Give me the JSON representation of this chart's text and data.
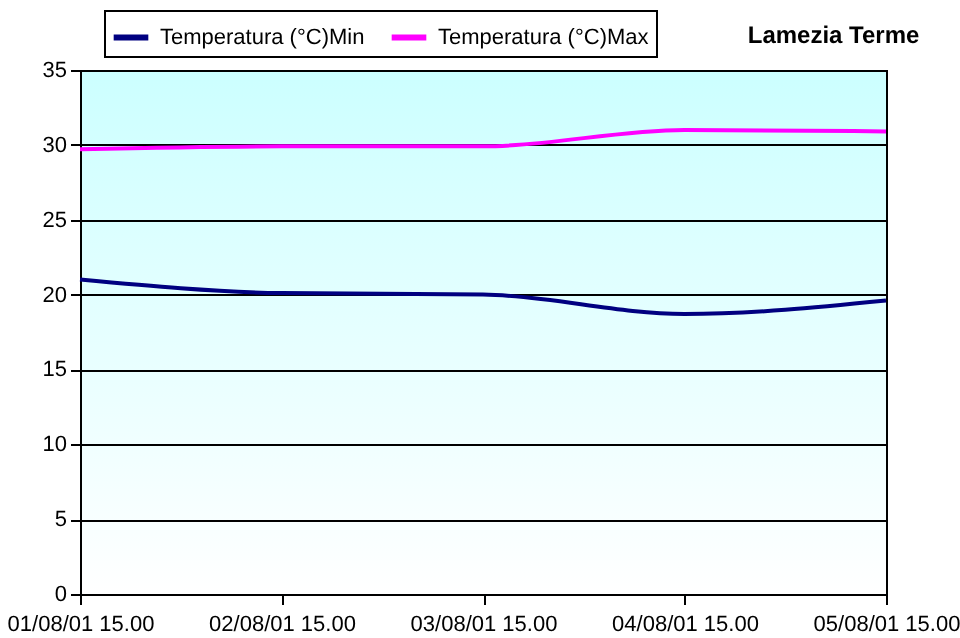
{
  "chart_data": {
    "type": "line",
    "title": "Lamezia Terme",
    "categories": [
      "01/08/01 15.00",
      "02/08/01 15.00",
      "03/08/01 15.00",
      "04/08/01 15.00",
      "05/08/01 15.00"
    ],
    "series": [
      {
        "name": "Temperatura (°C)Min",
        "color": "#000080",
        "values": [
          21,
          20.1,
          20,
          18.7,
          19.6
        ]
      },
      {
        "name": "Temperatura (°C)Max",
        "color": "#ff00ff",
        "values": [
          29.7,
          29.9,
          29.9,
          31,
          30.9
        ]
      }
    ],
    "ylim": [
      0,
      35
    ],
    "yticks": [
      0,
      5,
      10,
      15,
      20,
      25,
      30,
      35
    ],
    "grid": "y",
    "legend": "top left",
    "line_style": "solid",
    "marker": "none"
  }
}
